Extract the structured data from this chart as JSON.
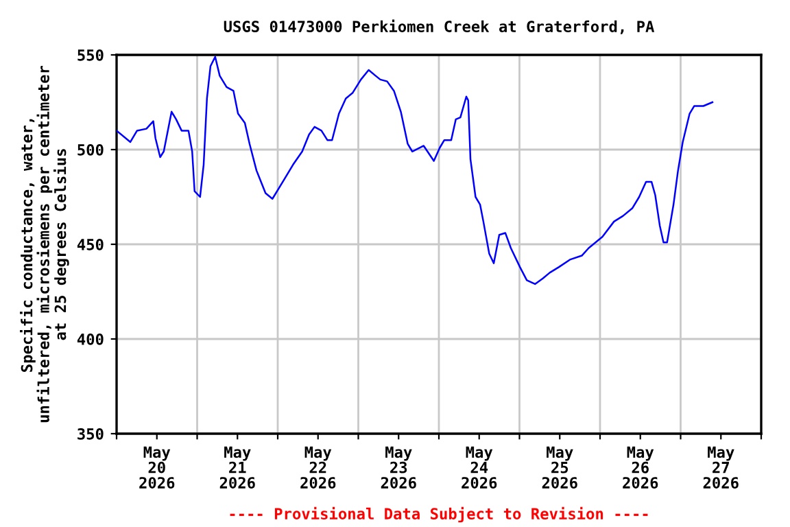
{
  "chart_data": {
    "type": "line",
    "title": "USGS 01473000 Perkiomen Creek at Graterford, PA",
    "ylabel": "Specific conductance, water,\nunfiltered, microsiemens per centimeter\nat 25 degrees Celsius",
    "annotations": [
      "---- Provisional Data Subject to Revision ----"
    ],
    "x": [
      "2026-05-20T00:00",
      "2026-05-20T04:06",
      "2026-05-20T06:06",
      "2026-05-20T08:53",
      "2026-05-20T10:56",
      "2026-05-20T11:35",
      "2026-05-20T12:59",
      "2026-05-20T14:03",
      "2026-05-20T16:23",
      "2026-05-20T17:44",
      "2026-05-20T19:22",
      "2026-05-20T21:25",
      "2026-05-20T22:31",
      "2026-05-20T23:14",
      "2026-05-21T00:52",
      "2026-05-21T01:56",
      "2026-05-21T02:55",
      "2026-05-21T03:58",
      "2026-05-21T05:22",
      "2026-05-21T06:43",
      "2026-05-21T08:46",
      "2026-05-21T10:49",
      "2026-05-21T12:10",
      "2026-05-21T14:13",
      "2026-05-21T15:37",
      "2026-05-21T17:40",
      "2026-05-21T20:22",
      "2026-05-21T22:25",
      "2026-05-22T01:51",
      "2026-05-22T04:33",
      "2026-05-22T07:17",
      "2026-05-22T09:20",
      "2026-05-22T10:58",
      "2026-05-22T13:01",
      "2026-05-22T14:47",
      "2026-05-22T16:11",
      "2026-05-22T18:14",
      "2026-05-22T20:17",
      "2026-05-22T22:20",
      "2026-05-23T00:47",
      "2026-05-23T03:05",
      "2026-05-23T05:08",
      "2026-05-23T06:32",
      "2026-05-23T08:35",
      "2026-05-23T10:37",
      "2026-05-23T12:40",
      "2026-05-23T14:43",
      "2026-05-23T16:04",
      "2026-05-23T19:28",
      "2026-05-23T22:30",
      "2026-05-24T00:16",
      "2026-05-24T01:37",
      "2026-05-24T03:40",
      "2026-05-24T05:03",
      "2026-05-24T06:24",
      "2026-05-24T08:10",
      "2026-05-24T08:44",
      "2026-05-24T09:24",
      "2026-05-24T10:55",
      "2026-05-24T12:16",
      "2026-05-24T13:15",
      "2026-05-24T15:00",
      "2026-05-24T16:21",
      "2026-05-24T17:59",
      "2026-05-24T19:47",
      "2026-05-24T21:26",
      "2026-05-25T00:08",
      "2026-05-25T02:11",
      "2026-05-25T04:38",
      "2026-05-25T06:58",
      "2026-05-25T09:01",
      "2026-05-25T11:46",
      "2026-05-25T15:10",
      "2026-05-25T18:34",
      "2026-05-25T20:37",
      "2026-05-25T22:40",
      "2026-05-26T00:43",
      "2026-05-26T04:09",
      "2026-05-26T06:51",
      "2026-05-26T09:36",
      "2026-05-26T11:39",
      "2026-05-26T13:42",
      "2026-05-26T15:20",
      "2026-05-26T16:26",
      "2026-05-26T17:47",
      "2026-05-26T18:54",
      "2026-05-26T19:58",
      "2026-05-26T21:53",
      "2026-05-26T23:14",
      "2026-05-27T00:38",
      "2026-05-27T02:41",
      "2026-05-27T04:02",
      "2026-05-27T06:46",
      "2026-05-27T08:07",
      "2026-05-27T09:29"
    ],
    "series": [
      {
        "color": "#0000ff",
        "values": [
          510,
          504,
          510,
          511,
          515,
          506,
          496,
          499,
          520,
          516,
          510,
          510,
          499,
          478,
          475,
          492,
          527,
          544,
          549,
          539,
          533,
          531,
          519,
          514,
          503,
          489,
          477,
          474,
          484,
          492,
          499,
          508,
          512,
          510,
          505,
          505,
          519,
          527,
          530,
          537,
          542,
          539,
          537,
          536,
          531,
          520,
          503,
          499,
          502,
          494,
          501,
          505,
          505,
          516,
          517,
          528,
          526,
          495,
          475,
          471,
          462,
          445,
          440,
          455,
          456,
          448,
          438,
          431,
          429,
          432,
          435,
          438,
          442,
          444,
          448,
          451,
          454,
          462,
          465,
          469,
          475,
          483,
          483,
          476,
          460,
          451,
          451,
          471,
          489,
          504,
          519,
          523,
          523,
          524,
          525
        ]
      }
    ],
    "xlim": [
      "2026-05-20T00:00",
      "2026-05-28T00:00"
    ],
    "xticks": [
      {
        "value": "2026-05-20T00:00",
        "label": null
      },
      {
        "value": "2026-05-21T00:00",
        "label": null
      },
      {
        "value": "2026-05-22T00:00",
        "label": null
      },
      {
        "value": "2026-05-23T00:00",
        "label": null
      },
      {
        "value": "2026-05-24T00:00",
        "label": null
      },
      {
        "value": "2026-05-25T00:00",
        "label": null
      },
      {
        "value": "2026-05-26T00:00",
        "label": null
      },
      {
        "value": "2026-05-27T00:00",
        "label": null
      },
      {
        "value": "2026-05-28T00:00",
        "label": null
      },
      {
        "value": "2026-05-20T12:00",
        "label": "May\n20\n2026"
      },
      {
        "value": "2026-05-21T12:00",
        "label": "May\n21\n2026"
      },
      {
        "value": "2026-05-22T12:00",
        "label": "May\n22\n2026"
      },
      {
        "value": "2026-05-23T12:00",
        "label": "May\n23\n2026"
      },
      {
        "value": "2026-05-24T12:00",
        "label": "May\n24\n2026"
      },
      {
        "value": "2026-05-25T12:00",
        "label": "May\n25\n2026"
      },
      {
        "value": "2026-05-26T12:00",
        "label": "May\n26\n2026"
      },
      {
        "value": "2026-05-27T12:00",
        "label": "May\n27\n2026"
      }
    ],
    "ylim": [
      350,
      550
    ],
    "yticks": [
      350,
      400,
      450,
      500,
      550
    ],
    "grid": true,
    "line_style": "solid",
    "marker": "none"
  }
}
